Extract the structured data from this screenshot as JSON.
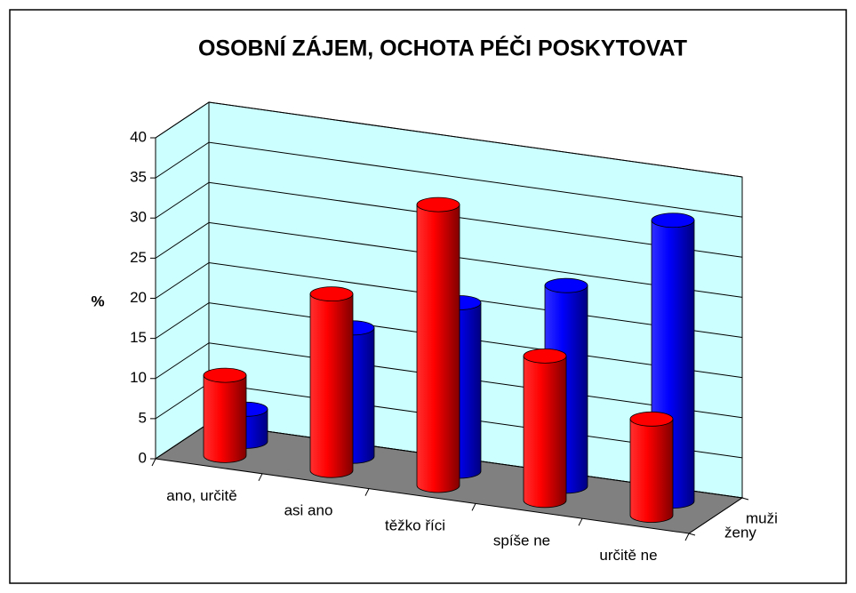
{
  "chart_data": {
    "type": "bar3d",
    "title": "OSOBNÍ ZÁJEM, OCHOTA PÉČI POSKYTOVAT",
    "y_label": "%",
    "categories": [
      "ano, určitě",
      "asi ano",
      "těžko říci",
      "spíše ne",
      "určitě ne"
    ],
    "series": [
      {
        "name": "ženy",
        "color": "#ff0000",
        "values": [
          10,
          22,
          35,
          18,
          12
        ]
      },
      {
        "name": "muži",
        "color": "#0000ff",
        "values": [
          4,
          16,
          21,
          25,
          35
        ]
      }
    ],
    "ylim": [
      0,
      40
    ],
    "yticks": [
      0,
      5,
      10,
      15,
      20,
      25,
      30,
      35,
      40
    ],
    "grid": true
  }
}
